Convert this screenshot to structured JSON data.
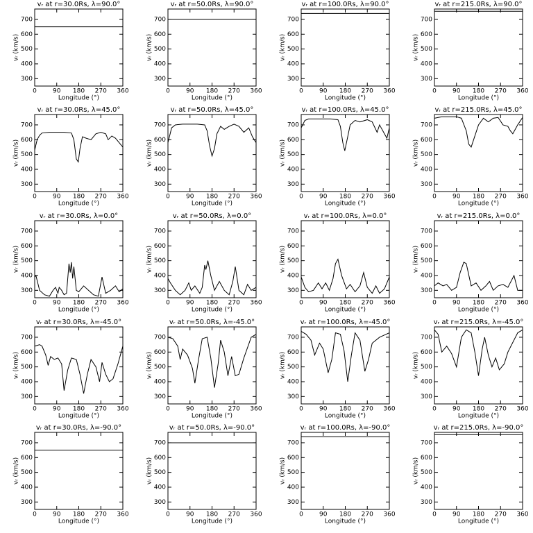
{
  "chart_data": [
    {
      "type": "line",
      "title": "vᵣ at r=30.0Rs, λ=90.0°",
      "xlabel": "Longitude (°)",
      "ylabel": "vᵣ (km/s)",
      "color": "#000000",
      "xlim": [
        0,
        360
      ],
      "ylim": [
        250,
        770
      ],
      "xticks": [
        0,
        90,
        180,
        270,
        360
      ],
      "yticks": [
        300,
        400,
        500,
        600,
        700
      ],
      "x": [
        0,
        360
      ],
      "values": [
        650,
        650
      ]
    },
    {
      "type": "line",
      "title": "vᵣ at r=50.0Rs, λ=90.0°",
      "xlabel": "Longitude (°)",
      "ylabel": "vᵣ (km/s)",
      "color": "#000000",
      "xlim": [
        0,
        360
      ],
      "ylim": [
        250,
        770
      ],
      "xticks": [
        0,
        90,
        180,
        270,
        360
      ],
      "yticks": [
        300,
        400,
        500,
        600,
        700
      ],
      "x": [
        0,
        360
      ],
      "values": [
        700,
        700
      ]
    },
    {
      "type": "line",
      "title": "vᵣ at r=100.0Rs, λ=90.0°",
      "xlabel": "Longitude (°)",
      "ylabel": "vᵣ (km/s)",
      "color": "#000000",
      "xlim": [
        0,
        360
      ],
      "ylim": [
        250,
        770
      ],
      "xticks": [
        0,
        90,
        180,
        270,
        360
      ],
      "yticks": [
        300,
        400,
        500,
        600,
        700
      ],
      "x": [
        0,
        360
      ],
      "values": [
        740,
        740
      ]
    },
    {
      "type": "line",
      "title": "vᵣ at r=215.0Rs, λ=90.0°",
      "xlabel": "Longitude (°)",
      "ylabel": "vᵣ (km/s)",
      "color": "#000000",
      "xlim": [
        0,
        360
      ],
      "ylim": [
        250,
        770
      ],
      "xticks": [
        0,
        90,
        180,
        270,
        360
      ],
      "yticks": [
        300,
        400,
        500,
        600,
        700
      ],
      "x": [
        0,
        360
      ],
      "values": [
        755,
        755
      ]
    },
    {
      "type": "line",
      "title": "vᵣ at r=30.0Rs, λ=45.0°",
      "xlabel": "Longitude (°)",
      "ylabel": "vᵣ (km/s)",
      "color": "#000000",
      "xlim": [
        0,
        360
      ],
      "ylim": [
        250,
        770
      ],
      "xticks": [
        0,
        90,
        180,
        270,
        360
      ],
      "yticks": [
        300,
        400,
        500,
        600,
        700
      ],
      "x": [
        0,
        10,
        20,
        30,
        60,
        90,
        120,
        150,
        160,
        170,
        178,
        185,
        195,
        210,
        230,
        250,
        270,
        290,
        300,
        315,
        330,
        345,
        360
      ],
      "values": [
        530,
        600,
        630,
        645,
        650,
        650,
        650,
        645,
        600,
        470,
        450,
        540,
        620,
        610,
        600,
        640,
        650,
        640,
        600,
        625,
        610,
        580,
        550
      ]
    },
    {
      "type": "line",
      "title": "vᵣ at r=50.0Rs, λ=45.0°",
      "xlabel": "Longitude (°)",
      "ylabel": "vᵣ (km/s)",
      "color": "#000000",
      "xlim": [
        0,
        360
      ],
      "ylim": [
        250,
        770
      ],
      "xticks": [
        0,
        90,
        180,
        270,
        360
      ],
      "yticks": [
        300,
        400,
        500,
        600,
        700
      ],
      "x": [
        0,
        15,
        30,
        60,
        90,
        120,
        150,
        160,
        170,
        180,
        190,
        200,
        215,
        230,
        250,
        270,
        290,
        310,
        330,
        345,
        360
      ],
      "values": [
        580,
        680,
        700,
        705,
        705,
        705,
        700,
        660,
        560,
        490,
        540,
        640,
        690,
        670,
        690,
        705,
        690,
        650,
        680,
        620,
        580
      ]
    },
    {
      "type": "line",
      "title": "vᵣ at r=100.0Rs, λ=45.0°",
      "xlabel": "Longitude (°)",
      "ylabel": "vᵣ (km/s)",
      "color": "#000000",
      "xlim": [
        0,
        360
      ],
      "ylim": [
        250,
        770
      ],
      "xticks": [
        0,
        90,
        180,
        270,
        360
      ],
      "yticks": [
        300,
        400,
        500,
        600,
        700
      ],
      "x": [
        0,
        15,
        30,
        60,
        90,
        120,
        150,
        160,
        170,
        178,
        190,
        200,
        220,
        240,
        270,
        290,
        310,
        320,
        340,
        350,
        360
      ],
      "values": [
        680,
        730,
        740,
        740,
        740,
        740,
        735,
        690,
        580,
        525,
        620,
        700,
        730,
        720,
        735,
        720,
        650,
        700,
        640,
        610,
        680
      ]
    },
    {
      "type": "line",
      "title": "vᵣ at r=215.0Rs, λ=45.0°",
      "xlabel": "Longitude (°)",
      "ylabel": "vᵣ (km/s)",
      "color": "#000000",
      "xlim": [
        0,
        360
      ],
      "ylim": [
        250,
        770
      ],
      "xticks": [
        0,
        90,
        180,
        270,
        360
      ],
      "yticks": [
        300,
        400,
        500,
        600,
        700
      ],
      "x": [
        0,
        30,
        60,
        90,
        110,
        130,
        140,
        150,
        160,
        180,
        200,
        220,
        240,
        260,
        280,
        300,
        310,
        320,
        340,
        360
      ],
      "values": [
        745,
        755,
        755,
        755,
        745,
        660,
        570,
        550,
        600,
        700,
        745,
        720,
        745,
        750,
        700,
        690,
        660,
        640,
        700,
        750
      ]
    },
    {
      "type": "line",
      "title": "vᵣ at r=30.0Rs, λ=0.0°",
      "xlabel": "Longitude (°)",
      "ylabel": "vᵣ (km/s)",
      "color": "#000000",
      "xlim": [
        0,
        360
      ],
      "ylim": [
        250,
        770
      ],
      "xticks": [
        0,
        90,
        180,
        270,
        360
      ],
      "yticks": [
        300,
        400,
        500,
        600,
        700
      ],
      "x": [
        0,
        5,
        20,
        40,
        60,
        75,
        85,
        95,
        100,
        110,
        120,
        130,
        140,
        145,
        150,
        155,
        160,
        170,
        180,
        200,
        220,
        240,
        260,
        275,
        290,
        310,
        330,
        345,
        360
      ],
      "values": [
        390,
        400,
        300,
        270,
        260,
        300,
        320,
        280,
        320,
        300,
        270,
        280,
        480,
        420,
        490,
        380,
        460,
        300,
        290,
        330,
        300,
        270,
        260,
        390,
        280,
        300,
        330,
        290,
        310
      ]
    },
    {
      "type": "line",
      "title": "vᵣ at r=50.0Rs, λ=0.0°",
      "xlabel": "Longitude (°)",
      "ylabel": "vᵣ (km/s)",
      "color": "#000000",
      "xlim": [
        0,
        360
      ],
      "ylim": [
        250,
        770
      ],
      "xticks": [
        0,
        90,
        180,
        270,
        360
      ],
      "yticks": [
        300,
        400,
        500,
        600,
        700
      ],
      "x": [
        0,
        10,
        30,
        50,
        70,
        85,
        95,
        110,
        130,
        140,
        150,
        155,
        163,
        175,
        190,
        210,
        230,
        250,
        265,
        275,
        290,
        310,
        325,
        340,
        360
      ],
      "values": [
        380,
        350,
        300,
        270,
        300,
        350,
        300,
        330,
        280,
        320,
        470,
        440,
        500,
        400,
        300,
        360,
        300,
        270,
        360,
        460,
        300,
        270,
        340,
        300,
        320
      ]
    },
    {
      "type": "line",
      "title": "vᵣ at r=100.0Rs, λ=0.0°",
      "xlabel": "Longitude (°)",
      "ylabel": "vᵣ (km/s)",
      "color": "#000000",
      "xlim": [
        0,
        360
      ],
      "ylim": [
        250,
        770
      ],
      "xticks": [
        0,
        90,
        180,
        270,
        360
      ],
      "yticks": [
        300,
        400,
        500,
        600,
        700
      ],
      "x": [
        0,
        15,
        30,
        50,
        70,
        85,
        100,
        115,
        130,
        140,
        150,
        165,
        185,
        200,
        220,
        240,
        255,
        270,
        290,
        305,
        320,
        340,
        360
      ],
      "values": [
        390,
        320,
        290,
        300,
        350,
        310,
        350,
        300,
        380,
        480,
        510,
        400,
        310,
        340,
        290,
        330,
        420,
        320,
        280,
        330,
        280,
        310,
        390
      ]
    },
    {
      "type": "line",
      "title": "vᵣ at r=215.0Rs, λ=0.0°",
      "xlabel": "Longitude (°)",
      "ylabel": "vᵣ (km/s)",
      "color": "#000000",
      "xlim": [
        0,
        360
      ],
      "ylim": [
        250,
        770
      ],
      "xticks": [
        0,
        90,
        180,
        270,
        360
      ],
      "yticks": [
        300,
        400,
        500,
        600,
        700
      ],
      "x": [
        0,
        15,
        35,
        50,
        70,
        90,
        105,
        120,
        130,
        150,
        170,
        190,
        210,
        225,
        240,
        260,
        280,
        300,
        325,
        340,
        360
      ],
      "values": [
        330,
        350,
        330,
        340,
        300,
        320,
        420,
        490,
        480,
        330,
        350,
        300,
        330,
        360,
        300,
        330,
        340,
        320,
        400,
        300,
        300
      ]
    },
    {
      "type": "line",
      "title": "vᵣ at r=30.0Rs, λ=-45.0°",
      "xlabel": "Longitude (°)",
      "ylabel": "vᵣ (km/s)",
      "color": "#000000",
      "xlim": [
        0,
        360
      ],
      "ylim": [
        250,
        770
      ],
      "xticks": [
        0,
        90,
        180,
        270,
        360
      ],
      "yticks": [
        300,
        400,
        500,
        600,
        700
      ],
      "x": [
        0,
        20,
        30,
        45,
        55,
        65,
        80,
        95,
        110,
        120,
        135,
        150,
        170,
        185,
        200,
        215,
        230,
        250,
        265,
        275,
        290,
        305,
        320,
        340,
        360
      ],
      "values": [
        640,
        650,
        640,
        580,
        510,
        570,
        550,
        560,
        520,
        340,
        480,
        560,
        550,
        450,
        320,
        450,
        550,
        500,
        400,
        530,
        450,
        400,
        420,
        520,
        640
      ]
    },
    {
      "type": "line",
      "title": "vᵣ at r=50.0Rs, λ=-45.0°",
      "xlabel": "Longitude (°)",
      "ylabel": "vᵣ (km/s)",
      "color": "#000000",
      "xlim": [
        0,
        360
      ],
      "ylim": [
        250,
        770
      ],
      "xticks": [
        0,
        90,
        180,
        270,
        360
      ],
      "yticks": [
        300,
        400,
        500,
        600,
        700
      ],
      "x": [
        0,
        20,
        40,
        50,
        60,
        80,
        100,
        110,
        125,
        140,
        160,
        175,
        190,
        205,
        215,
        230,
        245,
        260,
        275,
        290,
        310,
        340,
        360
      ],
      "values": [
        700,
        690,
        640,
        550,
        620,
        580,
        490,
        390,
        550,
        690,
        700,
        560,
        360,
        520,
        680,
        600,
        440,
        570,
        440,
        450,
        560,
        700,
        720
      ]
    },
    {
      "type": "line",
      "title": "vᵣ at r=100.0Rs, λ=-45.0°",
      "xlabel": "Longitude (°)",
      "ylabel": "vᵣ (km/s)",
      "color": "#000000",
      "xlim": [
        0,
        360
      ],
      "ylim": [
        250,
        770
      ],
      "xticks": [
        0,
        90,
        180,
        270,
        360
      ],
      "yticks": [
        300,
        400,
        500,
        600,
        700
      ],
      "x": [
        0,
        20,
        40,
        55,
        75,
        90,
        110,
        125,
        140,
        160,
        175,
        190,
        205,
        220,
        240,
        260,
        275,
        290,
        320,
        360
      ],
      "values": [
        740,
        720,
        680,
        580,
        660,
        620,
        460,
        550,
        730,
        720,
        610,
        400,
        580,
        730,
        680,
        470,
        550,
        660,
        700,
        730
      ]
    },
    {
      "type": "line",
      "title": "vᵣ at r=215.0Rs, λ=-45.0°",
      "xlabel": "Longitude (°)",
      "ylabel": "vᵣ (km/s)",
      "color": "#000000",
      "xlim": [
        0,
        360
      ],
      "ylim": [
        250,
        770
      ],
      "xticks": [
        0,
        90,
        180,
        270,
        360
      ],
      "yticks": [
        300,
        400,
        500,
        600,
        700
      ],
      "x": [
        0,
        15,
        30,
        50,
        70,
        90,
        110,
        130,
        150,
        165,
        180,
        195,
        205,
        220,
        235,
        250,
        265,
        285,
        300,
        340,
        360
      ],
      "values": [
        750,
        720,
        600,
        640,
        590,
        500,
        700,
        750,
        730,
        600,
        440,
        620,
        700,
        580,
        500,
        560,
        480,
        520,
        600,
        730,
        750
      ]
    },
    {
      "type": "line",
      "title": "vᵣ at r=30.0Rs, λ=-90.0°",
      "xlabel": "Longitude (°)",
      "ylabel": "vᵣ (km/s)",
      "color": "#000000",
      "xlim": [
        0,
        360
      ],
      "ylim": [
        250,
        770
      ],
      "xticks": [
        0,
        90,
        180,
        270,
        360
      ],
      "yticks": [
        300,
        400,
        500,
        600,
        700
      ],
      "x": [
        0,
        360
      ],
      "values": [
        650,
        650
      ]
    },
    {
      "type": "line",
      "title": "vᵣ at r=50.0Rs, λ=-90.0°",
      "xlabel": "Longitude (°)",
      "ylabel": "vᵣ (km/s)",
      "color": "#000000",
      "xlim": [
        0,
        360
      ],
      "ylim": [
        250,
        770
      ],
      "xticks": [
        0,
        90,
        180,
        270,
        360
      ],
      "yticks": [
        300,
        400,
        500,
        600,
        700
      ],
      "x": [
        0,
        360
      ],
      "values": [
        700,
        700
      ]
    },
    {
      "type": "line",
      "title": "vᵣ at r=100.0Rs, λ=-90.0°",
      "xlabel": "Longitude (°)",
      "ylabel": "vᵣ (km/s)",
      "color": "#000000",
      "xlim": [
        0,
        360
      ],
      "ylim": [
        250,
        770
      ],
      "xticks": [
        0,
        90,
        180,
        270,
        360
      ],
      "yticks": [
        300,
        400,
        500,
        600,
        700
      ],
      "x": [
        0,
        360
      ],
      "values": [
        740,
        740
      ]
    },
    {
      "type": "line",
      "title": "vᵣ at r=215.0Rs, λ=-90.0°",
      "xlabel": "Longitude (°)",
      "ylabel": "vᵣ (km/s)",
      "color": "#000000",
      "xlim": [
        0,
        360
      ],
      "ylim": [
        250,
        770
      ],
      "xticks": [
        0,
        90,
        180,
        270,
        360
      ],
      "yticks": [
        300,
        400,
        500,
        600,
        700
      ],
      "x": [
        0,
        360
      ],
      "values": [
        755,
        755
      ]
    }
  ]
}
